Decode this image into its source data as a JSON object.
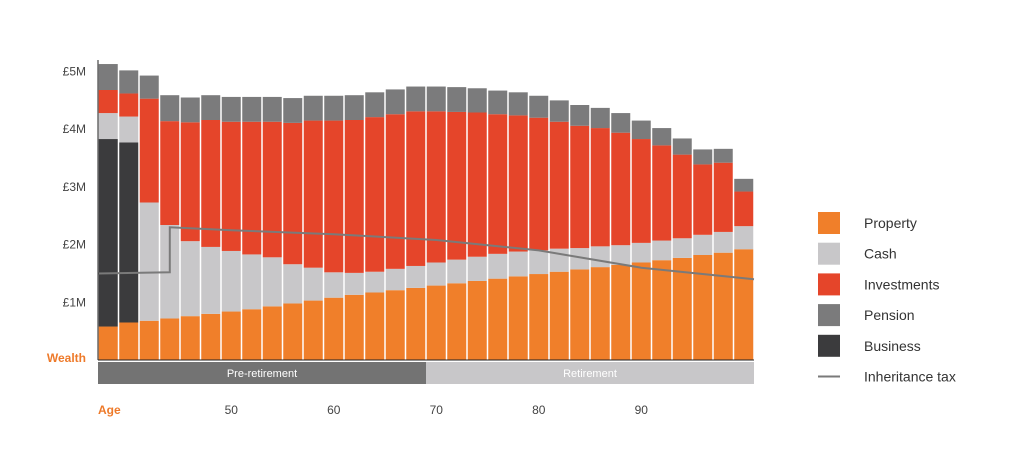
{
  "chart_data": {
    "type": "bar",
    "stacked": true,
    "xlabel": "Age",
    "ylabel": "Wealth",
    "ylim": [
      0,
      5.2
    ],
    "yticks": [
      {
        "value": 1,
        "label": "£1M"
      },
      {
        "value": 2,
        "label": "£2M"
      },
      {
        "value": 3,
        "label": "£3M"
      },
      {
        "value": 4,
        "label": "£4M"
      },
      {
        "value": 5,
        "label": "£5M"
      }
    ],
    "x": [
      38,
      40,
      42,
      44,
      46,
      48,
      50,
      52,
      54,
      56,
      58,
      60,
      62,
      64,
      66,
      68,
      70,
      72,
      74,
      76,
      78,
      80,
      82,
      84,
      86,
      88,
      90,
      92,
      94,
      96,
      98,
      100
    ],
    "xticks": [
      {
        "value": 50,
        "label": "50"
      },
      {
        "value": 60,
        "label": "60"
      },
      {
        "value": 70,
        "label": "70"
      },
      {
        "value": 80,
        "label": "80"
      },
      {
        "value": 90,
        "label": "90"
      }
    ],
    "series": [
      {
        "name": "Property",
        "color": "#f07f2a",
        "values": [
          0.58,
          0.65,
          0.68,
          0.72,
          0.76,
          0.8,
          0.84,
          0.88,
          0.93,
          0.98,
          1.03,
          1.08,
          1.13,
          1.17,
          1.21,
          1.25,
          1.29,
          1.33,
          1.37,
          1.41,
          1.45,
          1.49,
          1.53,
          1.57,
          1.61,
          1.65,
          1.69,
          1.73,
          1.77,
          1.82,
          1.86,
          1.92
        ]
      },
      {
        "name": "Cash",
        "color": "#c8c7c9",
        "values": [
          0,
          0,
          2.05,
          1.62,
          1.3,
          1.16,
          1.05,
          0.95,
          0.85,
          0.68,
          0.57,
          0.44,
          0.38,
          0.36,
          0.37,
          0.38,
          0.4,
          0.41,
          0.42,
          0.43,
          0.43,
          0.41,
          0.4,
          0.37,
          0.36,
          0.34,
          0.34,
          0.34,
          0.34,
          0.35,
          0.36,
          0.4
        ]
      },
      {
        "name": "Investments",
        "color": "#e5452a",
        "values": [
          0,
          0,
          1.8,
          1.8,
          2.06,
          2.2,
          2.24,
          2.3,
          2.35,
          2.45,
          2.55,
          2.63,
          2.65,
          2.68,
          2.68,
          2.68,
          2.62,
          2.56,
          2.5,
          2.42,
          2.36,
          2.3,
          2.2,
          2.12,
          2.05,
          1.95,
          1.8,
          1.65,
          1.45,
          1.22,
          1.2,
          0.6
        ]
      },
      {
        "name": "Pension",
        "color": "#7b7b7c",
        "values": [
          0.45,
          0.4,
          0.4,
          0.45,
          0.43,
          0.43,
          0.43,
          0.43,
          0.43,
          0.43,
          0.43,
          0.43,
          0.43,
          0.43,
          0.43,
          0.43,
          0.43,
          0.43,
          0.42,
          0.41,
          0.4,
          0.38,
          0.37,
          0.36,
          0.35,
          0.34,
          0.32,
          0.3,
          0.28,
          0.26,
          0.24,
          0.22
        ]
      },
      {
        "name": "Business",
        "color": "#3b3b3d",
        "values": [
          3.25,
          3.12,
          0,
          0,
          0,
          0,
          0,
          0,
          0,
          0,
          0,
          0,
          0,
          0,
          0,
          0,
          0,
          0,
          0,
          0,
          0,
          0,
          0,
          0,
          0,
          0,
          0,
          0,
          0,
          0,
          0,
          0
        ]
      }
    ],
    "extra_layers": [
      {
        "series": "Cash",
        "values": [
          0.45,
          0.45,
          0,
          0,
          0,
          0,
          0,
          0,
          0,
          0,
          0,
          0,
          0,
          0,
          0,
          0,
          0,
          0,
          0,
          0,
          0,
          0,
          0,
          0,
          0,
          0,
          0,
          0,
          0,
          0,
          0,
          0
        ]
      },
      {
        "series": "Investments",
        "values": [
          0.4,
          0.4,
          0,
          0,
          0,
          0,
          0,
          0,
          0,
          0,
          0,
          0,
          0,
          0,
          0,
          0,
          0,
          0,
          0,
          0,
          0,
          0,
          0,
          0,
          0,
          0,
          0,
          0,
          0,
          0,
          0,
          0
        ]
      }
    ],
    "line_series": {
      "name": "Inheritance tax",
      "color": "#7a7a7a",
      "points": [
        [
          37,
          1.5
        ],
        [
          44,
          1.52
        ],
        [
          44,
          2.3
        ],
        [
          50,
          2.25
        ],
        [
          60,
          2.18
        ],
        [
          70,
          2.08
        ],
        [
          80,
          1.9
        ],
        [
          90,
          1.6
        ],
        [
          101,
          1.4
        ]
      ]
    },
    "phases": [
      {
        "label": "Pre-retirement",
        "start": 37,
        "end": 69,
        "color": "#737373"
      },
      {
        "label": "Retirement",
        "start": 69,
        "end": 101,
        "color": "#c8c7c9"
      }
    ],
    "x_range": [
      37,
      101
    ],
    "legend_position": "right",
    "colors": {
      "axis_label": "#ee7a2a"
    }
  }
}
